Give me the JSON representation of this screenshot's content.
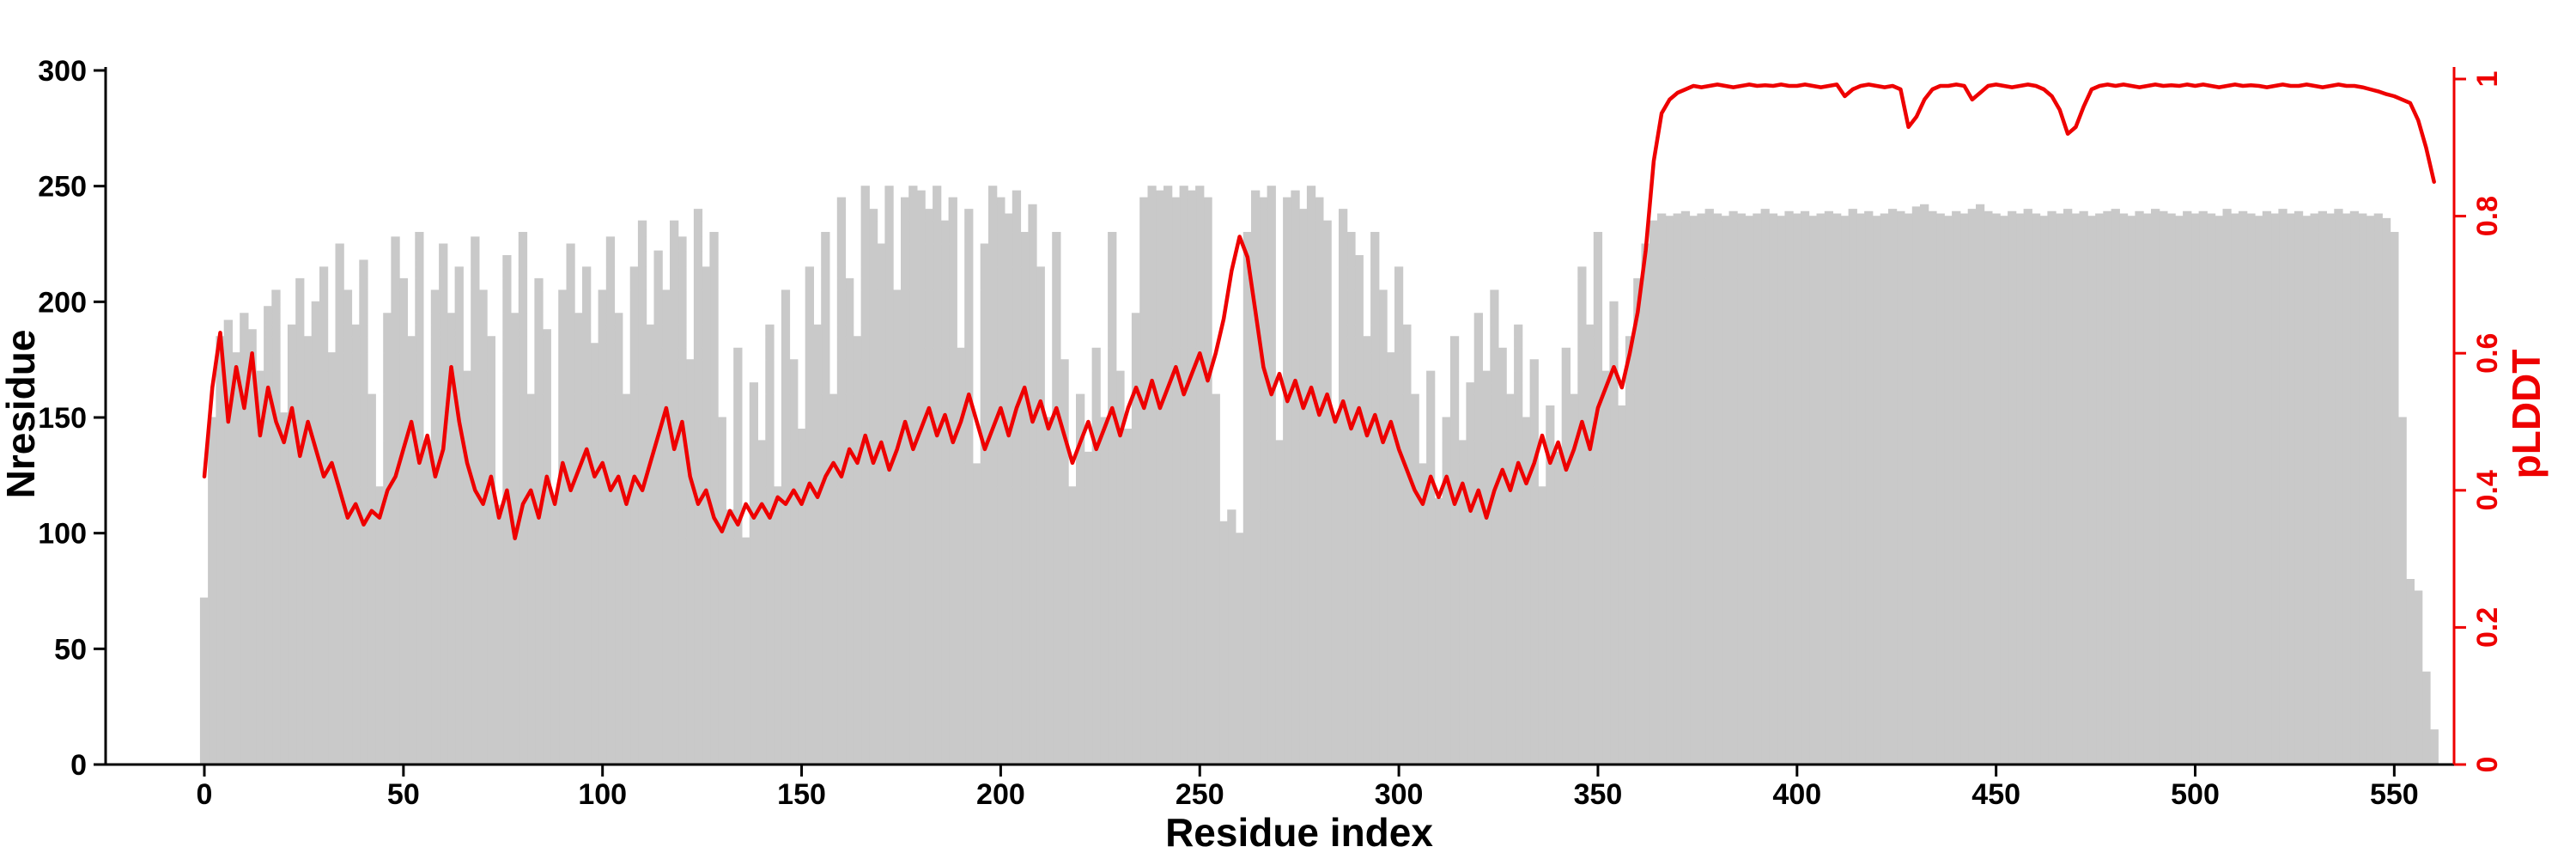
{
  "chart_data": {
    "type": "bar",
    "title": "",
    "xlabel": "Residue index",
    "ylabel_left": "Nresidue",
    "ylabel_right": "pLDDT",
    "grid": false,
    "legend": "none",
    "x_start": 0,
    "x_step": 2,
    "xlim": [
      -25,
      565
    ],
    "ylim_left": [
      0,
      300
    ],
    "ylim_right": [
      0,
      1
    ],
    "x_ticks": [
      0,
      50,
      100,
      150,
      200,
      250,
      300,
      350,
      400,
      450,
      500,
      550
    ],
    "y_ticks_left": [
      0,
      50,
      100,
      150,
      200,
      250,
      300
    ],
    "y_ticks_right": [
      0,
      0.2,
      0.4,
      0.6,
      0.8,
      1
    ],
    "colors": {
      "bars": "#c9c9c9",
      "line": "#ee0000",
      "axis": "#000000"
    },
    "series": [
      {
        "name": "Nresidue",
        "type": "bar",
        "axis": "left",
        "values": [
          72,
          150,
          185,
          192,
          178,
          195,
          188,
          170,
          198,
          205,
          152,
          190,
          210,
          185,
          200,
          215,
          178,
          225,
          205,
          190,
          218,
          160,
          120,
          195,
          228,
          210,
          185,
          230,
          140,
          205,
          225,
          195,
          215,
          170,
          228,
          205,
          185,
          112,
          220,
          195,
          230,
          160,
          210,
          188,
          115,
          205,
          225,
          195,
          215,
          182,
          205,
          228,
          195,
          160,
          215,
          235,
          190,
          222,
          205,
          235,
          228,
          175,
          240,
          215,
          230,
          150,
          110,
          180,
          98,
          165,
          140,
          190,
          120,
          205,
          175,
          145,
          215,
          190,
          230,
          160,
          245,
          210,
          185,
          250,
          240,
          225,
          250,
          205,
          245,
          250,
          248,
          240,
          250,
          235,
          245,
          180,
          240,
          130,
          225,
          250,
          245,
          238,
          248,
          230,
          242,
          215,
          150,
          230,
          175,
          120,
          160,
          135,
          180,
          150,
          230,
          170,
          145,
          195,
          245,
          250,
          248,
          250,
          245,
          250,
          248,
          250,
          245,
          160,
          105,
          110,
          100,
          230,
          248,
          245,
          250,
          140,
          245,
          248,
          240,
          250,
          245,
          235,
          150,
          240,
          230,
          220,
          185,
          230,
          205,
          178,
          215,
          190,
          160,
          130,
          170,
          115,
          150,
          185,
          140,
          165,
          195,
          170,
          205,
          180,
          160,
          190,
          150,
          175,
          120,
          155,
          135,
          180,
          160,
          215,
          190,
          230,
          170,
          200,
          155,
          185,
          210,
          225,
          235,
          238,
          237,
          238,
          239,
          237,
          238,
          240,
          238,
          237,
          239,
          238,
          237,
          238,
          240,
          238,
          237,
          239,
          238,
          239,
          237,
          238,
          239,
          238,
          237,
          240,
          238,
          239,
          237,
          238,
          240,
          239,
          238,
          241,
          242,
          239,
          238,
          237,
          239,
          238,
          240,
          242,
          239,
          238,
          237,
          239,
          238,
          240,
          238,
          237,
          239,
          238,
          240,
          238,
          239,
          237,
          238,
          239,
          240,
          238,
          237,
          239,
          238,
          240,
          239,
          238,
          237,
          239,
          238,
          239,
          238,
          237,
          240,
          238,
          239,
          238,
          237,
          239,
          238,
          240,
          238,
          239,
          237,
          238,
          239,
          238,
          240,
          238,
          239,
          238,
          237,
          238,
          236,
          230,
          150,
          80,
          75,
          40,
          15
        ]
      },
      {
        "name": "pLDDT",
        "type": "line",
        "axis": "right",
        "values": [
          0.42,
          0.55,
          0.63,
          0.5,
          0.58,
          0.52,
          0.6,
          0.48,
          0.55,
          0.5,
          0.47,
          0.52,
          0.45,
          0.5,
          0.46,
          0.42,
          0.44,
          0.4,
          0.36,
          0.38,
          0.35,
          0.37,
          0.36,
          0.4,
          0.42,
          0.46,
          0.5,
          0.44,
          0.48,
          0.42,
          0.46,
          0.58,
          0.5,
          0.44,
          0.4,
          0.38,
          0.42,
          0.36,
          0.4,
          0.33,
          0.38,
          0.4,
          0.36,
          0.42,
          0.38,
          0.44,
          0.4,
          0.43,
          0.46,
          0.42,
          0.44,
          0.4,
          0.42,
          0.38,
          0.42,
          0.4,
          0.44,
          0.48,
          0.52,
          0.46,
          0.5,
          0.42,
          0.38,
          0.4,
          0.36,
          0.34,
          0.37,
          0.35,
          0.38,
          0.36,
          0.38,
          0.36,
          0.39,
          0.38,
          0.4,
          0.38,
          0.41,
          0.39,
          0.42,
          0.44,
          0.42,
          0.46,
          0.44,
          0.48,
          0.44,
          0.47,
          0.43,
          0.46,
          0.5,
          0.46,
          0.49,
          0.52,
          0.48,
          0.51,
          0.47,
          0.5,
          0.54,
          0.5,
          0.46,
          0.49,
          0.52,
          0.48,
          0.52,
          0.55,
          0.5,
          0.53,
          0.49,
          0.52,
          0.48,
          0.44,
          0.47,
          0.5,
          0.46,
          0.49,
          0.52,
          0.48,
          0.52,
          0.55,
          0.52,
          0.56,
          0.52,
          0.55,
          0.58,
          0.54,
          0.57,
          0.6,
          0.56,
          0.6,
          0.65,
          0.72,
          0.77,
          0.74,
          0.66,
          0.58,
          0.54,
          0.57,
          0.53,
          0.56,
          0.52,
          0.55,
          0.51,
          0.54,
          0.5,
          0.53,
          0.49,
          0.52,
          0.48,
          0.51,
          0.47,
          0.5,
          0.46,
          0.43,
          0.4,
          0.38,
          0.42,
          0.39,
          0.42,
          0.38,
          0.41,
          0.37,
          0.4,
          0.36,
          0.4,
          0.43,
          0.4,
          0.44,
          0.41,
          0.44,
          0.48,
          0.44,
          0.47,
          0.43,
          0.46,
          0.5,
          0.46,
          0.52,
          0.55,
          0.58,
          0.55,
          0.6,
          0.66,
          0.75,
          0.88,
          0.95,
          0.97,
          0.98,
          0.985,
          0.99,
          0.988,
          0.99,
          0.992,
          0.99,
          0.988,
          0.99,
          0.992,
          0.99,
          0.991,
          0.99,
          0.992,
          0.99,
          0.99,
          0.992,
          0.99,
          0.988,
          0.99,
          0.992,
          0.975,
          0.985,
          0.99,
          0.992,
          0.99,
          0.988,
          0.99,
          0.985,
          0.93,
          0.945,
          0.97,
          0.985,
          0.99,
          0.99,
          0.992,
          0.99,
          0.97,
          0.98,
          0.99,
          0.992,
          0.99,
          0.988,
          0.99,
          0.992,
          0.99,
          0.985,
          0.975,
          0.955,
          0.92,
          0.93,
          0.96,
          0.985,
          0.99,
          0.992,
          0.99,
          0.992,
          0.99,
          0.988,
          0.99,
          0.992,
          0.99,
          0.991,
          0.99,
          0.992,
          0.99,
          0.992,
          0.99,
          0.988,
          0.99,
          0.992,
          0.99,
          0.991,
          0.99,
          0.988,
          0.99,
          0.992,
          0.99,
          0.99,
          0.992,
          0.99,
          0.988,
          0.99,
          0.992,
          0.99,
          0.99,
          0.988,
          0.985,
          0.982,
          0.978,
          0.975,
          0.97,
          0.965,
          0.94,
          0.9,
          0.85
        ]
      }
    ]
  }
}
